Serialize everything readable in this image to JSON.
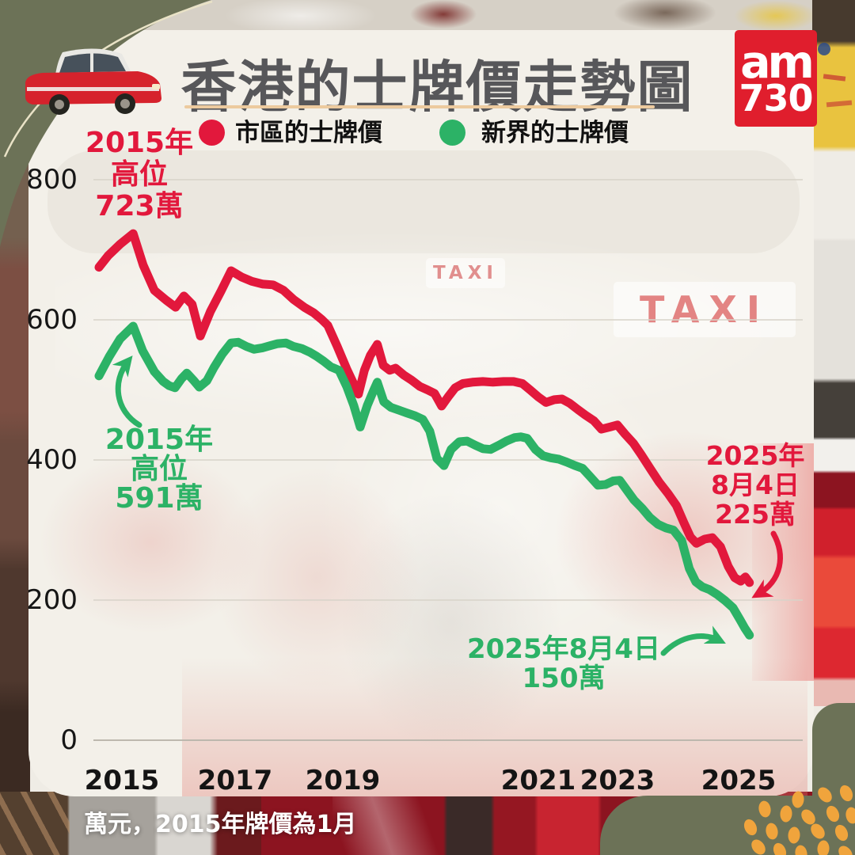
{
  "header": {
    "title": "香港的士牌價走勢圖",
    "logo_line1": "am",
    "logo_line2": "730"
  },
  "legend": {
    "urban_label": "市區的士牌價",
    "nt_label": "新界的士牌價"
  },
  "annotations": {
    "red_peak": {
      "l1": "2015年",
      "l2": "高位",
      "l3": "723萬"
    },
    "green_peak": {
      "l1": "2015年",
      "l2": "高位",
      "l3": "591萬"
    },
    "red_end": {
      "l1": "2025年",
      "l2": "8月4日",
      "l3": "225萬"
    },
    "green_end": {
      "l1": "2025年8月4日",
      "l2": "150萬"
    }
  },
  "footnote": "萬元，2015年牌價為1月",
  "background_signs": {
    "taxi_small": "TAXI",
    "taxi_large": "TAXI"
  },
  "colors": {
    "urban": "#e2183c",
    "nt": "#2cb266",
    "olive": "#6c7257",
    "dot_orange": "#f0a43c",
    "logo_red": "#e01e2d",
    "title_gray": "#57575a",
    "underline": "#ecca9e",
    "cream_line": "#e9e2c6"
  },
  "chart_data": {
    "type": "line",
    "title": "香港的士牌價走勢圖",
    "xlabel": "",
    "ylabel": "萬元",
    "ylim": [
      0,
      800
    ],
    "yticks": [
      800,
      600,
      400,
      200,
      0
    ],
    "xticks": [
      "2015",
      "2017",
      "2019",
      "2021",
      "2023",
      "2025"
    ],
    "grid": true,
    "legend_position": "top",
    "note": "萬元，2015年牌價為1月",
    "series": [
      {
        "name": "市區的士牌價",
        "color": "#e2183c",
        "peak_label": "2015年高位723萬",
        "end_label": "2025年8月4日225萬",
        "points": [
          [
            2014.5,
            675
          ],
          [
            2014.66,
            692
          ],
          [
            2014.86,
            708
          ],
          [
            2015.08,
            723
          ],
          [
            2015.25,
            678
          ],
          [
            2015.44,
            642
          ],
          [
            2015.64,
            628
          ],
          [
            2015.8,
            618
          ],
          [
            2015.94,
            634
          ],
          [
            2016.08,
            622
          ],
          [
            2016.22,
            577
          ],
          [
            2016.39,
            612
          ],
          [
            2016.57,
            641
          ],
          [
            2016.74,
            670
          ],
          [
            2016.92,
            661
          ],
          [
            2017.09,
            655
          ],
          [
            2017.28,
            651
          ],
          [
            2017.45,
            650
          ],
          [
            2017.63,
            642
          ],
          [
            2017.8,
            629
          ],
          [
            2017.98,
            618
          ],
          [
            2018.14,
            610
          ],
          [
            2018.27,
            601
          ],
          [
            2018.38,
            592
          ],
          [
            2018.54,
            562
          ],
          [
            2018.7,
            530
          ],
          [
            2018.84,
            505
          ],
          [
            2018.9,
            494
          ],
          [
            2019.0,
            528
          ],
          [
            2019.1,
            549
          ],
          [
            2019.22,
            565
          ],
          [
            2019.32,
            535
          ],
          [
            2019.43,
            528
          ],
          [
            2019.53,
            531
          ],
          [
            2019.67,
            521
          ],
          [
            2019.8,
            514
          ],
          [
            2019.94,
            505
          ],
          [
            2020.07,
            500
          ],
          [
            2020.19,
            495
          ],
          [
            2020.31,
            477
          ],
          [
            2020.42,
            490
          ],
          [
            2020.54,
            503
          ],
          [
            2020.67,
            509
          ],
          [
            2020.83,
            511
          ],
          [
            2021.01,
            512
          ],
          [
            2021.18,
            511
          ],
          [
            2021.36,
            512
          ],
          [
            2021.53,
            512
          ],
          [
            2021.68,
            509
          ],
          [
            2021.81,
            500
          ],
          [
            2021.95,
            490
          ],
          [
            2022.08,
            482
          ],
          [
            2022.22,
            486
          ],
          [
            2022.35,
            487
          ],
          [
            2022.48,
            481
          ],
          [
            2022.62,
            472
          ],
          [
            2022.75,
            464
          ],
          [
            2022.89,
            456
          ],
          [
            2023.02,
            444
          ],
          [
            2023.16,
            447
          ],
          [
            2023.29,
            450
          ],
          [
            2023.42,
            437
          ],
          [
            2023.56,
            424
          ],
          [
            2023.69,
            408
          ],
          [
            2023.86,
            386
          ],
          [
            2024.0,
            368
          ],
          [
            2024.15,
            352
          ],
          [
            2024.29,
            335
          ],
          [
            2024.42,
            310
          ],
          [
            2024.53,
            290
          ],
          [
            2024.63,
            281
          ],
          [
            2024.77,
            287
          ],
          [
            2024.9,
            289
          ],
          [
            2025.04,
            276
          ],
          [
            2025.17,
            248
          ],
          [
            2025.28,
            232
          ],
          [
            2025.38,
            227
          ],
          [
            2025.46,
            233
          ],
          [
            2025.53,
            225
          ]
        ]
      },
      {
        "name": "新界的士牌價",
        "color": "#2cb266",
        "peak_label": "2015年高位591萬",
        "end_label": "2025年8月4日150萬",
        "points": [
          [
            2014.5,
            520
          ],
          [
            2014.67,
            547
          ],
          [
            2014.86,
            573
          ],
          [
            2015.08,
            591
          ],
          [
            2015.24,
            556
          ],
          [
            2015.44,
            526
          ],
          [
            2015.59,
            512
          ],
          [
            2015.69,
            506
          ],
          [
            2015.79,
            503
          ],
          [
            2015.9,
            516
          ],
          [
            2015.99,
            524
          ],
          [
            2016.1,
            514
          ],
          [
            2016.2,
            504
          ],
          [
            2016.33,
            513
          ],
          [
            2016.45,
            532
          ],
          [
            2016.59,
            551
          ],
          [
            2016.74,
            567
          ],
          [
            2016.86,
            568
          ],
          [
            2017.0,
            562
          ],
          [
            2017.13,
            558
          ],
          [
            2017.27,
            560
          ],
          [
            2017.4,
            563
          ],
          [
            2017.53,
            566
          ],
          [
            2017.67,
            567
          ],
          [
            2017.8,
            562
          ],
          [
            2017.94,
            559
          ],
          [
            2018.07,
            554
          ],
          [
            2018.19,
            548
          ],
          [
            2018.31,
            541
          ],
          [
            2018.43,
            533
          ],
          [
            2018.57,
            528
          ],
          [
            2018.7,
            505
          ],
          [
            2018.82,
            478
          ],
          [
            2018.93,
            447
          ],
          [
            2019.05,
            478
          ],
          [
            2019.16,
            500
          ],
          [
            2019.22,
            511
          ],
          [
            2019.33,
            483
          ],
          [
            2019.45,
            475
          ],
          [
            2019.59,
            471
          ],
          [
            2019.72,
            467
          ],
          [
            2019.86,
            463
          ],
          [
            2019.99,
            458
          ],
          [
            2020.11,
            441
          ],
          [
            2020.23,
            402
          ],
          [
            2020.35,
            392
          ],
          [
            2020.47,
            415
          ],
          [
            2020.61,
            426
          ],
          [
            2020.74,
            427
          ],
          [
            2020.88,
            421
          ],
          [
            2021.01,
            416
          ],
          [
            2021.14,
            415
          ],
          [
            2021.28,
            421
          ],
          [
            2021.41,
            427
          ],
          [
            2021.55,
            432
          ],
          [
            2021.65,
            433
          ],
          [
            2021.76,
            431
          ],
          [
            2021.9,
            415
          ],
          [
            2022.03,
            406
          ],
          [
            2022.16,
            403
          ],
          [
            2022.3,
            401
          ],
          [
            2022.43,
            397
          ],
          [
            2022.57,
            392
          ],
          [
            2022.7,
            388
          ],
          [
            2022.83,
            376
          ],
          [
            2022.96,
            364
          ],
          [
            2023.09,
            365
          ],
          [
            2023.22,
            370
          ],
          [
            2023.33,
            371
          ],
          [
            2023.45,
            357
          ],
          [
            2023.57,
            343
          ],
          [
            2023.71,
            331
          ],
          [
            2023.84,
            318
          ],
          [
            2023.98,
            308
          ],
          [
            2024.11,
            303
          ],
          [
            2024.24,
            300
          ],
          [
            2024.38,
            285
          ],
          [
            2024.51,
            245
          ],
          [
            2024.62,
            226
          ],
          [
            2024.73,
            219
          ],
          [
            2024.85,
            215
          ],
          [
            2024.98,
            208
          ],
          [
            2025.12,
            199
          ],
          [
            2025.25,
            189
          ],
          [
            2025.37,
            172
          ],
          [
            2025.45,
            160
          ],
          [
            2025.53,
            150
          ]
        ]
      }
    ]
  }
}
